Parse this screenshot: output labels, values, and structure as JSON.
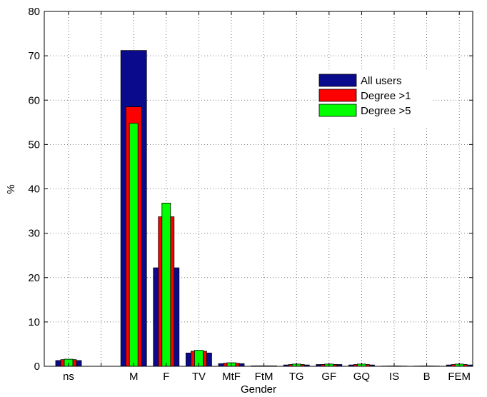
{
  "chart_data": {
    "type": "bar",
    "title": "",
    "xlabel": "Gender",
    "ylabel": "%",
    "ylim": [
      0,
      80
    ],
    "yticks": [
      0,
      10,
      20,
      30,
      40,
      50,
      60,
      70,
      80
    ],
    "grid": true,
    "legend_position": "top-right",
    "categories": [
      "ns",
      "",
      "M",
      "F",
      "TV",
      "MtF",
      "FtM",
      "TG",
      "GF",
      "GQ",
      "IS",
      "B",
      "FEM"
    ],
    "series": [
      {
        "name": "All users",
        "color": "#0a0a8c",
        "values": [
          1.3,
          0.0,
          71.2,
          22.2,
          3.0,
          0.6,
          0.1,
          0.3,
          0.4,
          0.3,
          0.05,
          0.05,
          0.3
        ]
      },
      {
        "name": "Degree >1",
        "color": "#ff0000",
        "values": [
          1.5,
          0.0,
          58.5,
          33.7,
          3.4,
          0.7,
          0.1,
          0.4,
          0.4,
          0.4,
          0.05,
          0.05,
          0.4
        ]
      },
      {
        "name": "Degree >5",
        "color": "#00ff00",
        "values": [
          1.6,
          0.0,
          54.8,
          36.8,
          3.6,
          0.8,
          0.1,
          0.5,
          0.5,
          0.5,
          0.05,
          0.05,
          0.5
        ]
      }
    ]
  }
}
